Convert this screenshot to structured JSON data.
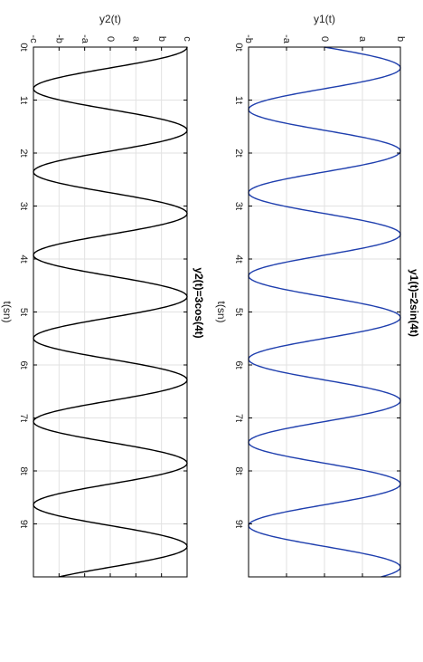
{
  "chart_data": [
    {
      "type": "line",
      "title": "y1(t)=2sin(4t)",
      "xlabel": "t(sn)",
      "ylabel": "y1(t)",
      "color": "#1f3fae",
      "amplitude": 2,
      "omega": 4,
      "function": "sin",
      "xlim": [
        0,
        10
      ],
      "ylim": [
        -2,
        2
      ],
      "x_ticks": [
        0,
        1,
        2,
        3,
        4,
        5,
        6,
        7,
        8,
        9
      ],
      "x_tick_labels": [
        "0t",
        "1t",
        "2t",
        "3t",
        "4t",
        "5t",
        "6t",
        "7t",
        "8t",
        "9t"
      ],
      "y_ticks": [
        -2,
        -1,
        0,
        1,
        2
      ],
      "y_tick_labels": [
        "-b",
        "-a",
        "0",
        "a",
        "b"
      ],
      "grid": true
    },
    {
      "type": "line",
      "title": "y2(t)=3cos(4t)",
      "xlabel": "t(sn)",
      "ylabel": "y2(t)",
      "color": "#000000",
      "amplitude": 3,
      "omega": 4,
      "function": "cos",
      "xlim": [
        0,
        10
      ],
      "ylim": [
        -3,
        3
      ],
      "x_ticks": [
        0,
        1,
        2,
        3,
        4,
        5,
        6,
        7,
        8,
        9
      ],
      "x_tick_labels": [
        "0t",
        "1t",
        "2t",
        "3t",
        "4t",
        "5t",
        "6t",
        "7t",
        "8t",
        "9t"
      ],
      "y_ticks": [
        -3,
        -2,
        -1,
        0,
        1,
        2,
        3
      ],
      "y_tick_labels": [
        "-c",
        "-b",
        "-a",
        "0",
        "a",
        "b",
        "c"
      ],
      "grid": true
    }
  ]
}
